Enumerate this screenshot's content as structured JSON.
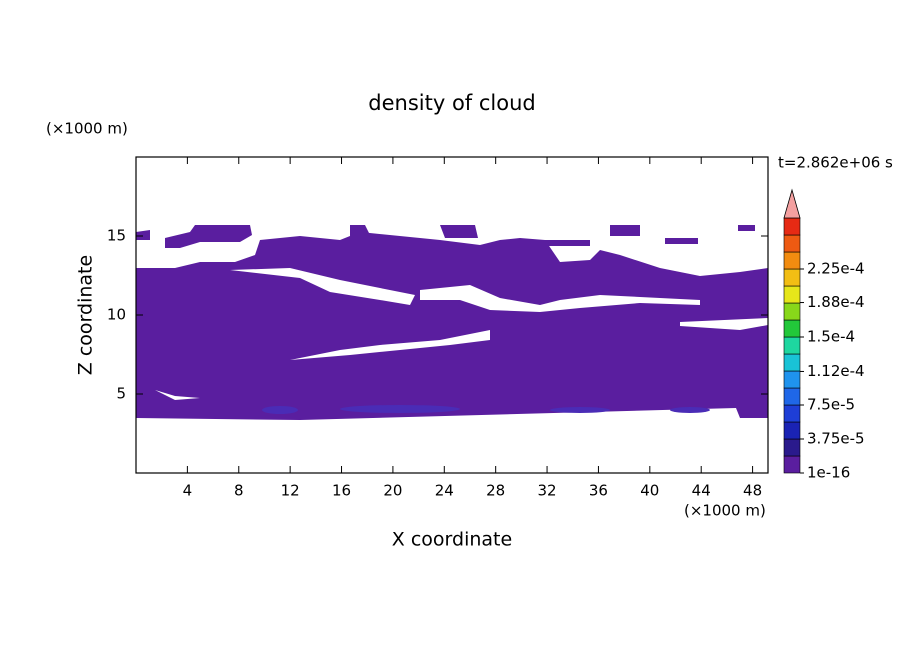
{
  "chart_data": {
    "type": "contour",
    "title": "density of cloud",
    "x_label": "X coordinate",
    "y_label": "Z coordinate",
    "x_unit": "(×1000 m)",
    "y_unit": "(×1000 m)",
    "time_label": "t=2.862e+06 s",
    "xlim": [
      0,
      49.2
    ],
    "ylim": [
      0,
      20
    ],
    "xticks": [
      4,
      8,
      12,
      16,
      20,
      24,
      28,
      32,
      36,
      40,
      44,
      48
    ],
    "yticks": [
      5,
      10,
      15
    ],
    "fill_color": "#5a1e9f",
    "colorbar": {
      "levels": [
        {
          "value": 1e-16,
          "label": "1e-16"
        },
        {
          "value": 3.75e-05,
          "label": "3.75e-5"
        },
        {
          "value": 7.5e-05,
          "label": "7.5e-5"
        },
        {
          "value": 0.000112,
          "label": "1.12e-4"
        },
        {
          "value": 0.00015,
          "label": "1.5e-4"
        },
        {
          "value": 0.000188,
          "label": "1.88e-4"
        },
        {
          "value": 0.000225,
          "label": "2.25e-4"
        }
      ],
      "colors": [
        "#5a1e9f",
        "#2a1a8c",
        "#1a23b4",
        "#1e3ed6",
        "#1f67e8",
        "#1f93ee",
        "#19c3d6",
        "#1ed7a0",
        "#22c83a",
        "#88d81a",
        "#e6e61a",
        "#f2be14",
        "#f28c10",
        "#ee5a12",
        "#e62a14"
      ],
      "extend_color": "#f4a0a0"
    }
  }
}
